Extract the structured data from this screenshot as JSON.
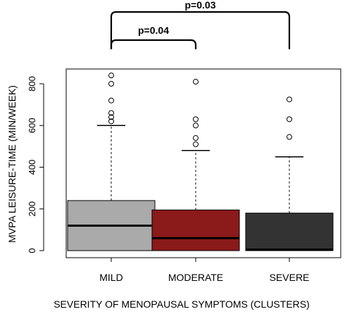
{
  "chart_data": {
    "type": "box",
    "xlabel": "SEVERITY OF MENOPAUSAL SYMPTOMS (CLUSTERS)",
    "ylabel": "MVPA LEISURE-TIME (MIN/WEEK)",
    "ylim": [
      0,
      870
    ],
    "yticks": [
      "0",
      "200",
      "400",
      "600",
      "800"
    ],
    "categories": [
      "MILD",
      "MODERATE",
      "SEVERE"
    ],
    "boxes": [
      {
        "category": "MILD",
        "color": "#aaaaaa",
        "min": 0,
        "q1": 0,
        "median": 120,
        "q3": 240,
        "max": 600,
        "outliers": [
          620,
          640,
          660,
          720,
          800,
          840
        ]
      },
      {
        "category": "MODERATE",
        "color": "#8b1a1a",
        "min": 0,
        "q1": 0,
        "median": 60,
        "q3": 195,
        "max": 480,
        "outliers": [
          510,
          540,
          600,
          630,
          810
        ]
      },
      {
        "category": "SEVERE",
        "color": "#333333",
        "min": 0,
        "q1": 0,
        "median": 5,
        "q3": 180,
        "max": 450,
        "outliers": [
          545,
          630,
          725
        ]
      }
    ],
    "annotations": [
      {
        "from": "MILD",
        "to": "MODERATE",
        "label": "p=0.04"
      },
      {
        "from": "MILD",
        "to": "SEVERE",
        "label": "p=0.03"
      }
    ]
  }
}
